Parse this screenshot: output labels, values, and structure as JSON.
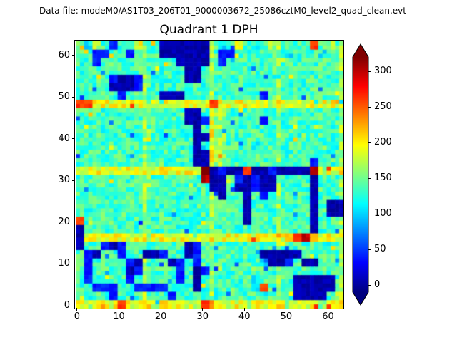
{
  "header": {
    "data_file_label": "Data file: modeM0/AS1T03_206T01_9000003672_25086cztM0_level2_quad_clean.evt"
  },
  "colors": {
    "background": "#ffffff",
    "text": "#000000",
    "axes_border": "#000000",
    "colorbar_over": "#7f0000",
    "colorbar_under": "#00007f"
  },
  "chart_data": {
    "type": "heatmap",
    "title": "Quadrant 1 DPH",
    "xlabel": "",
    "ylabel": "",
    "x_range": [
      0,
      64
    ],
    "y_range": [
      0,
      64
    ],
    "x_ticks": [
      0,
      10,
      20,
      30,
      40,
      50,
      60
    ],
    "y_ticks": [
      0,
      10,
      20,
      30,
      40,
      50,
      60
    ],
    "colormap": "jet",
    "colorbar_ticks": [
      0,
      50,
      100,
      150,
      200,
      250,
      300
    ],
    "colorbar_extend": "both",
    "color_scale_range": [
      -10,
      320
    ],
    "colormap_stops": [
      {
        "t": 0.0,
        "c": "#00007f"
      },
      {
        "t": 0.125,
        "c": "#0000ff"
      },
      {
        "t": 0.375,
        "c": "#00ffff"
      },
      {
        "t": 0.625,
        "c": "#ffff00"
      },
      {
        "t": 0.875,
        "c": "#ff0000"
      },
      {
        "t": 1.0,
        "c": "#7f0000"
      }
    ],
    "grid_resolution": 64,
    "value_map_resolution": 32,
    "value_key": {
      ".": 135,
      ",": 118,
      "c": 100,
      "b": 75,
      "B": 40,
      "K": 5,
      "g": 165,
      "y": 190,
      "Y": 220,
      "o": 260,
      "r": 300,
      "R": 330
    },
    "noise_amplitude": 16,
    "noise_seed": 12345,
    "module_gap_columns": [
      16,
      32,
      48,
      63
    ],
    "module_gap_boost": 28,
    "rows": [
      ".,g.B,.y..KKKKKK.,.y.,.g....o.g.",
      "..BB..B...KKKKKK.BB,.....,...,..",
      "..B.........KKKK.B,.............",
      ".............KK.................",
      "....BKKB.....KK.................",
      "....KKKB........................",
      ".....B....KKK.........B.........",
      "ooyyyyyygyyyyyyyoyyyyyygyyyyyyyg",
      ".............KK.gg..............",
      ".............KKBgg....B.........",
      "..............K.gg..............",
      "..............KKgg..............",
      "..............K,gg...,..........",
      "..............KKgg..............",
      "..............KKgg..........B...",
      "yyyyyyyygyyyyyyRKBKKoKKBKKKKrgyy",
      "...............rKK.BKBKK....K...",
      "................KK.KKBKK..,.K...",
      ".................K..K.B.....K...",
      "....................K.......K.KK",
      "....................K..,....K.KK",
      "o...................K.......K...",
      "K............,..............K...",
      "KyyyyyyygyyyyyyygyyyyyyyyYorYyyg",
      "K..BKB.......KB.................",
      ".BK..B..KKB..KB.......KKKKK.....",
      ".B....BK...KB.B.......,KKB.KK...",
      ".B....KB....B.KB................",
      ".B....B.....B.K......,....KKKKK.",
      "..BBB..BBBB...K......,o...KKKKK.",
      "g,..B......B..........,...KKKK.g",
      "ygyyyoyyygyyyygoyyyygyyyygyyygyy"
    ]
  }
}
